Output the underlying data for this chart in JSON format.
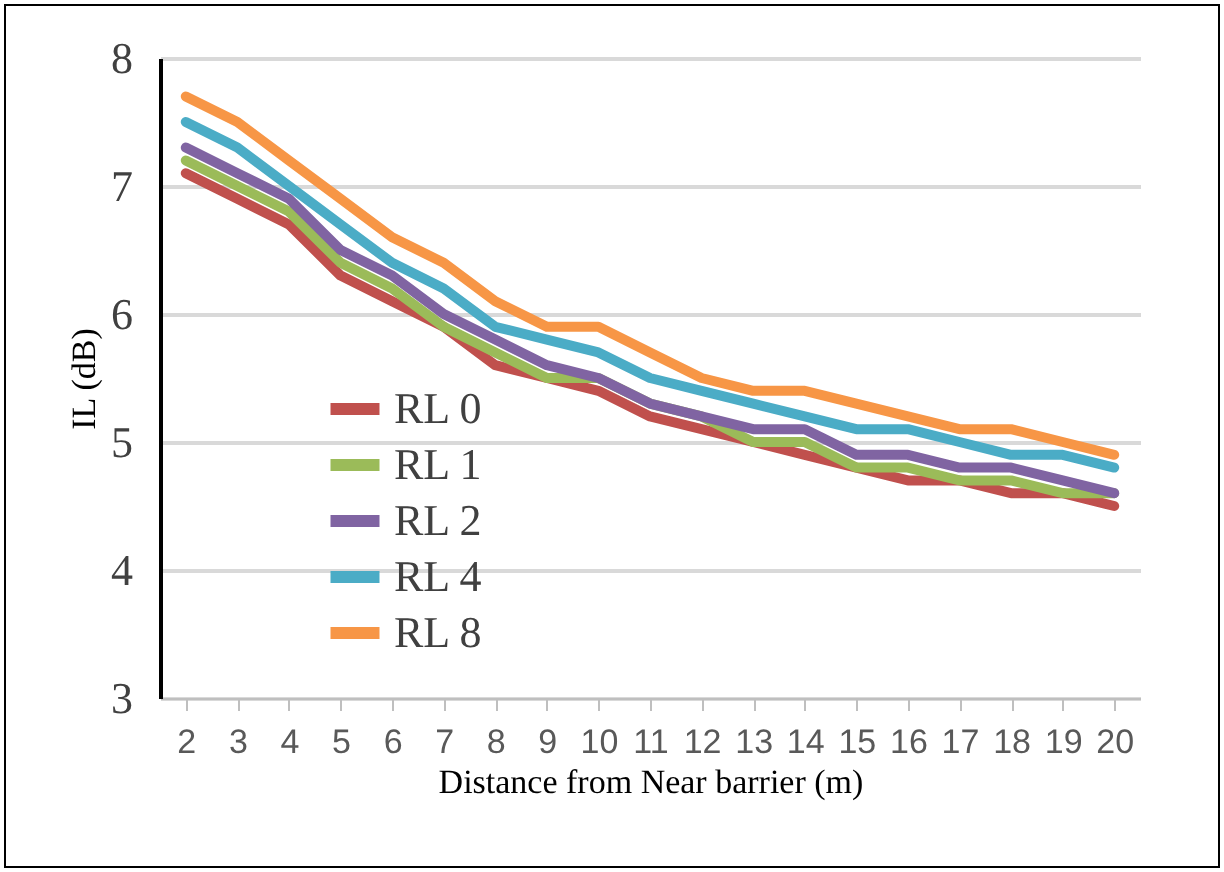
{
  "chart_data": {
    "type": "line",
    "xlabel": "Distance from Near barrier (m)",
    "ylabel": "IL (dB)",
    "categories": [
      "2",
      "3",
      "4",
      "5",
      "6",
      "7",
      "8",
      "9",
      "10",
      "11",
      "12",
      "13",
      "14",
      "15",
      "16",
      "17",
      "18",
      "19",
      "20"
    ],
    "series": [
      {
        "name": "RL 0",
        "color": "#c0504d",
        "values": [
          7.1,
          6.9,
          6.7,
          6.3,
          6.1,
          5.9,
          5.6,
          5.5,
          5.4,
          5.2,
          5.1,
          5.0,
          4.9,
          4.8,
          4.7,
          4.7,
          4.6,
          4.6,
          4.5
        ]
      },
      {
        "name": "RL 1",
        "color": "#9bbb59",
        "values": [
          7.2,
          7.0,
          6.8,
          6.4,
          6.2,
          5.9,
          5.7,
          5.5,
          5.5,
          5.3,
          5.2,
          5.0,
          5.0,
          4.8,
          4.8,
          4.7,
          4.7,
          4.6,
          4.6
        ]
      },
      {
        "name": "RL 2",
        "color": "#8064a2",
        "values": [
          7.3,
          7.1,
          6.9,
          6.5,
          6.3,
          6.0,
          5.8,
          5.6,
          5.5,
          5.3,
          5.2,
          5.1,
          5.1,
          4.9,
          4.9,
          4.8,
          4.8,
          4.7,
          4.6
        ]
      },
      {
        "name": "RL 4",
        "color": "#4bacc6",
        "values": [
          7.5,
          7.3,
          7.0,
          6.7,
          6.4,
          6.2,
          5.9,
          5.8,
          5.7,
          5.5,
          5.4,
          5.3,
          5.2,
          5.1,
          5.1,
          5.0,
          4.9,
          4.9,
          4.8
        ]
      },
      {
        "name": "RL 8",
        "color": "#f79646",
        "values": [
          7.7,
          7.5,
          7.2,
          6.9,
          6.6,
          6.4,
          6.1,
          5.9,
          5.9,
          5.7,
          5.5,
          5.4,
          5.4,
          5.3,
          5.2,
          5.1,
          5.1,
          5.0,
          4.9
        ]
      }
    ],
    "ylim": [
      3,
      8
    ],
    "yticks": [
      3,
      4,
      5,
      6,
      7,
      8
    ],
    "grid": "y",
    "legend": "bottom left",
    "marker": "none",
    "line_style": "solid"
  }
}
